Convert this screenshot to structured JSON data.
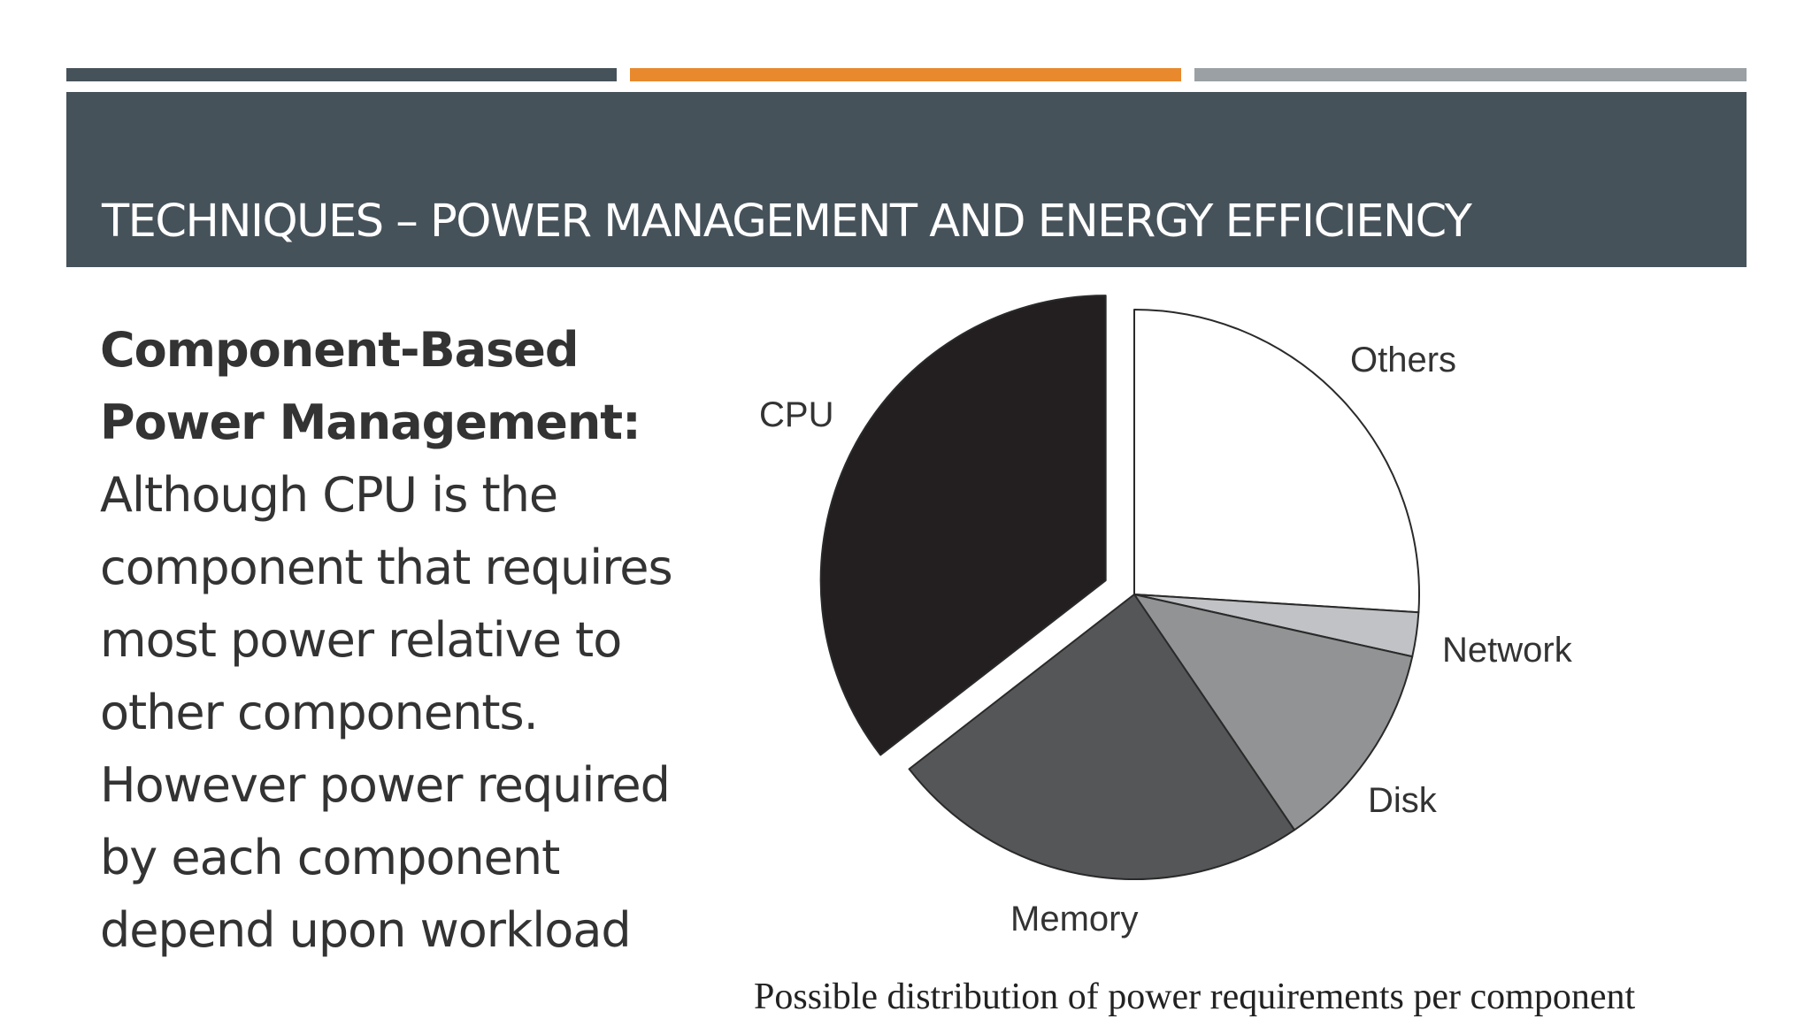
{
  "colors": {
    "title_band": "#46525a",
    "accent_dark": "#46525a",
    "accent_orange": "#e8892e",
    "accent_gray": "#9aa0a4"
  },
  "slide": {
    "title": "TECHNIQUES – POWER MANAGEMENT AND ENERGY EFFICIENCY",
    "body": {
      "heading_lines": [
        "Component-Based",
        "Power Management:"
      ],
      "text_lines": [
        "Although CPU is the",
        "component that requires",
        "most power relative to",
        "other components.",
        "However power required",
        "by each component",
        "depend upon workload"
      ]
    },
    "caption": "Possible distribution of power requirements per component"
  },
  "chart_data": {
    "type": "pie",
    "start_angle_deg": 0,
    "direction": "clockwise",
    "slices": [
      {
        "label": "Others",
        "value": 26,
        "color": "#ffffff"
      },
      {
        "label": "Network",
        "value": 2.5,
        "color": "#c0c2c5"
      },
      {
        "label": "Disk",
        "value": 12,
        "color": "#929394"
      },
      {
        "label": "Memory",
        "value": 24,
        "color": "#555658"
      },
      {
        "label": "CPU",
        "value": 35.5,
        "color": "#231f20",
        "exploded": true
      }
    ],
    "caption": "Possible distribution of power requirements per component"
  }
}
